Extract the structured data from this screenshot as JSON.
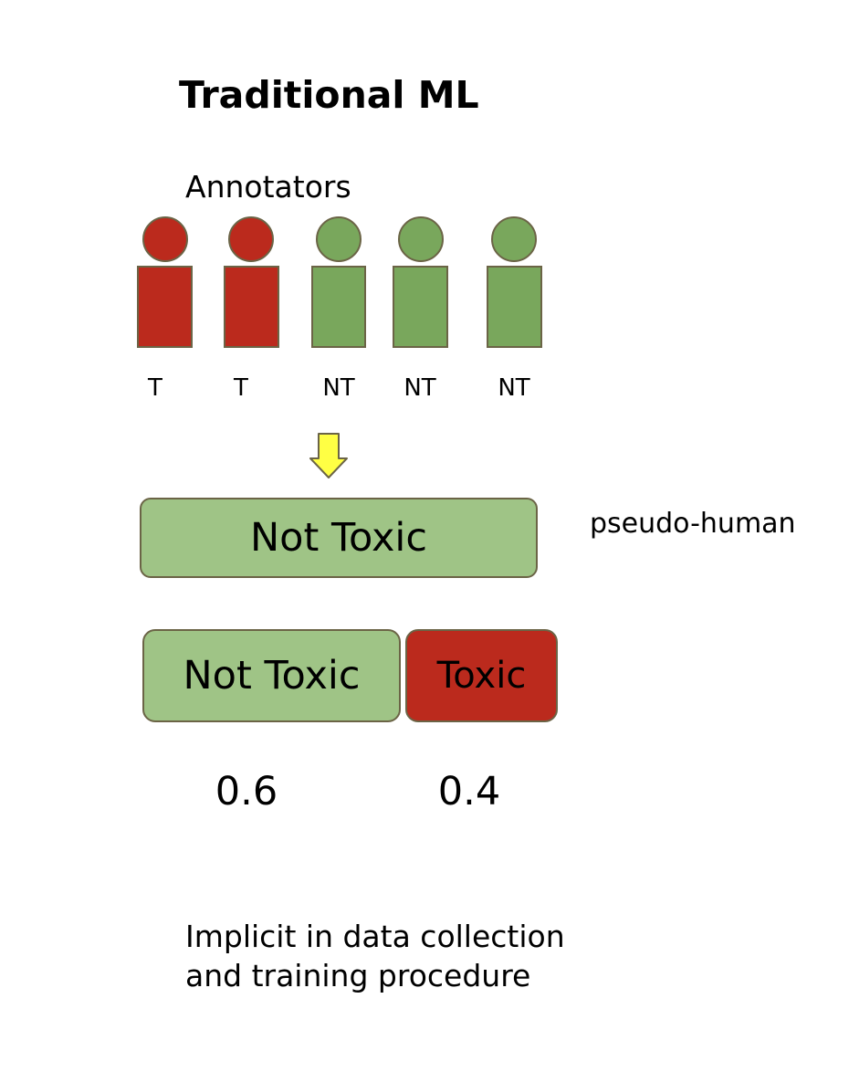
{
  "title": "Traditional ML",
  "annotators_label": "Annotators",
  "colors": {
    "toxic": "#bb2a1d",
    "not_toxic": "#79a75c",
    "not_toxic_light": "#9fc486",
    "arrow": "#ffff44",
    "outline": "#6b6446"
  },
  "annotators": [
    {
      "vote": "T",
      "color": "red"
    },
    {
      "vote": "T",
      "color": "red"
    },
    {
      "vote": "NT",
      "color": "green"
    },
    {
      "vote": "NT",
      "color": "green"
    },
    {
      "vote": "NT",
      "color": "green"
    }
  ],
  "arrow_icon": "down-arrow-icon",
  "aggregate_label": "Not Toxic",
  "pseudo_human_label": "pseudo-human",
  "distribution": {
    "not_toxic_label": "Not Toxic",
    "toxic_label": "Toxic",
    "not_toxic_prob": "0.6",
    "toxic_prob": "0.4"
  },
  "footnote": {
    "line1": "Implicit in data collection",
    "line2": "and training procedure"
  }
}
